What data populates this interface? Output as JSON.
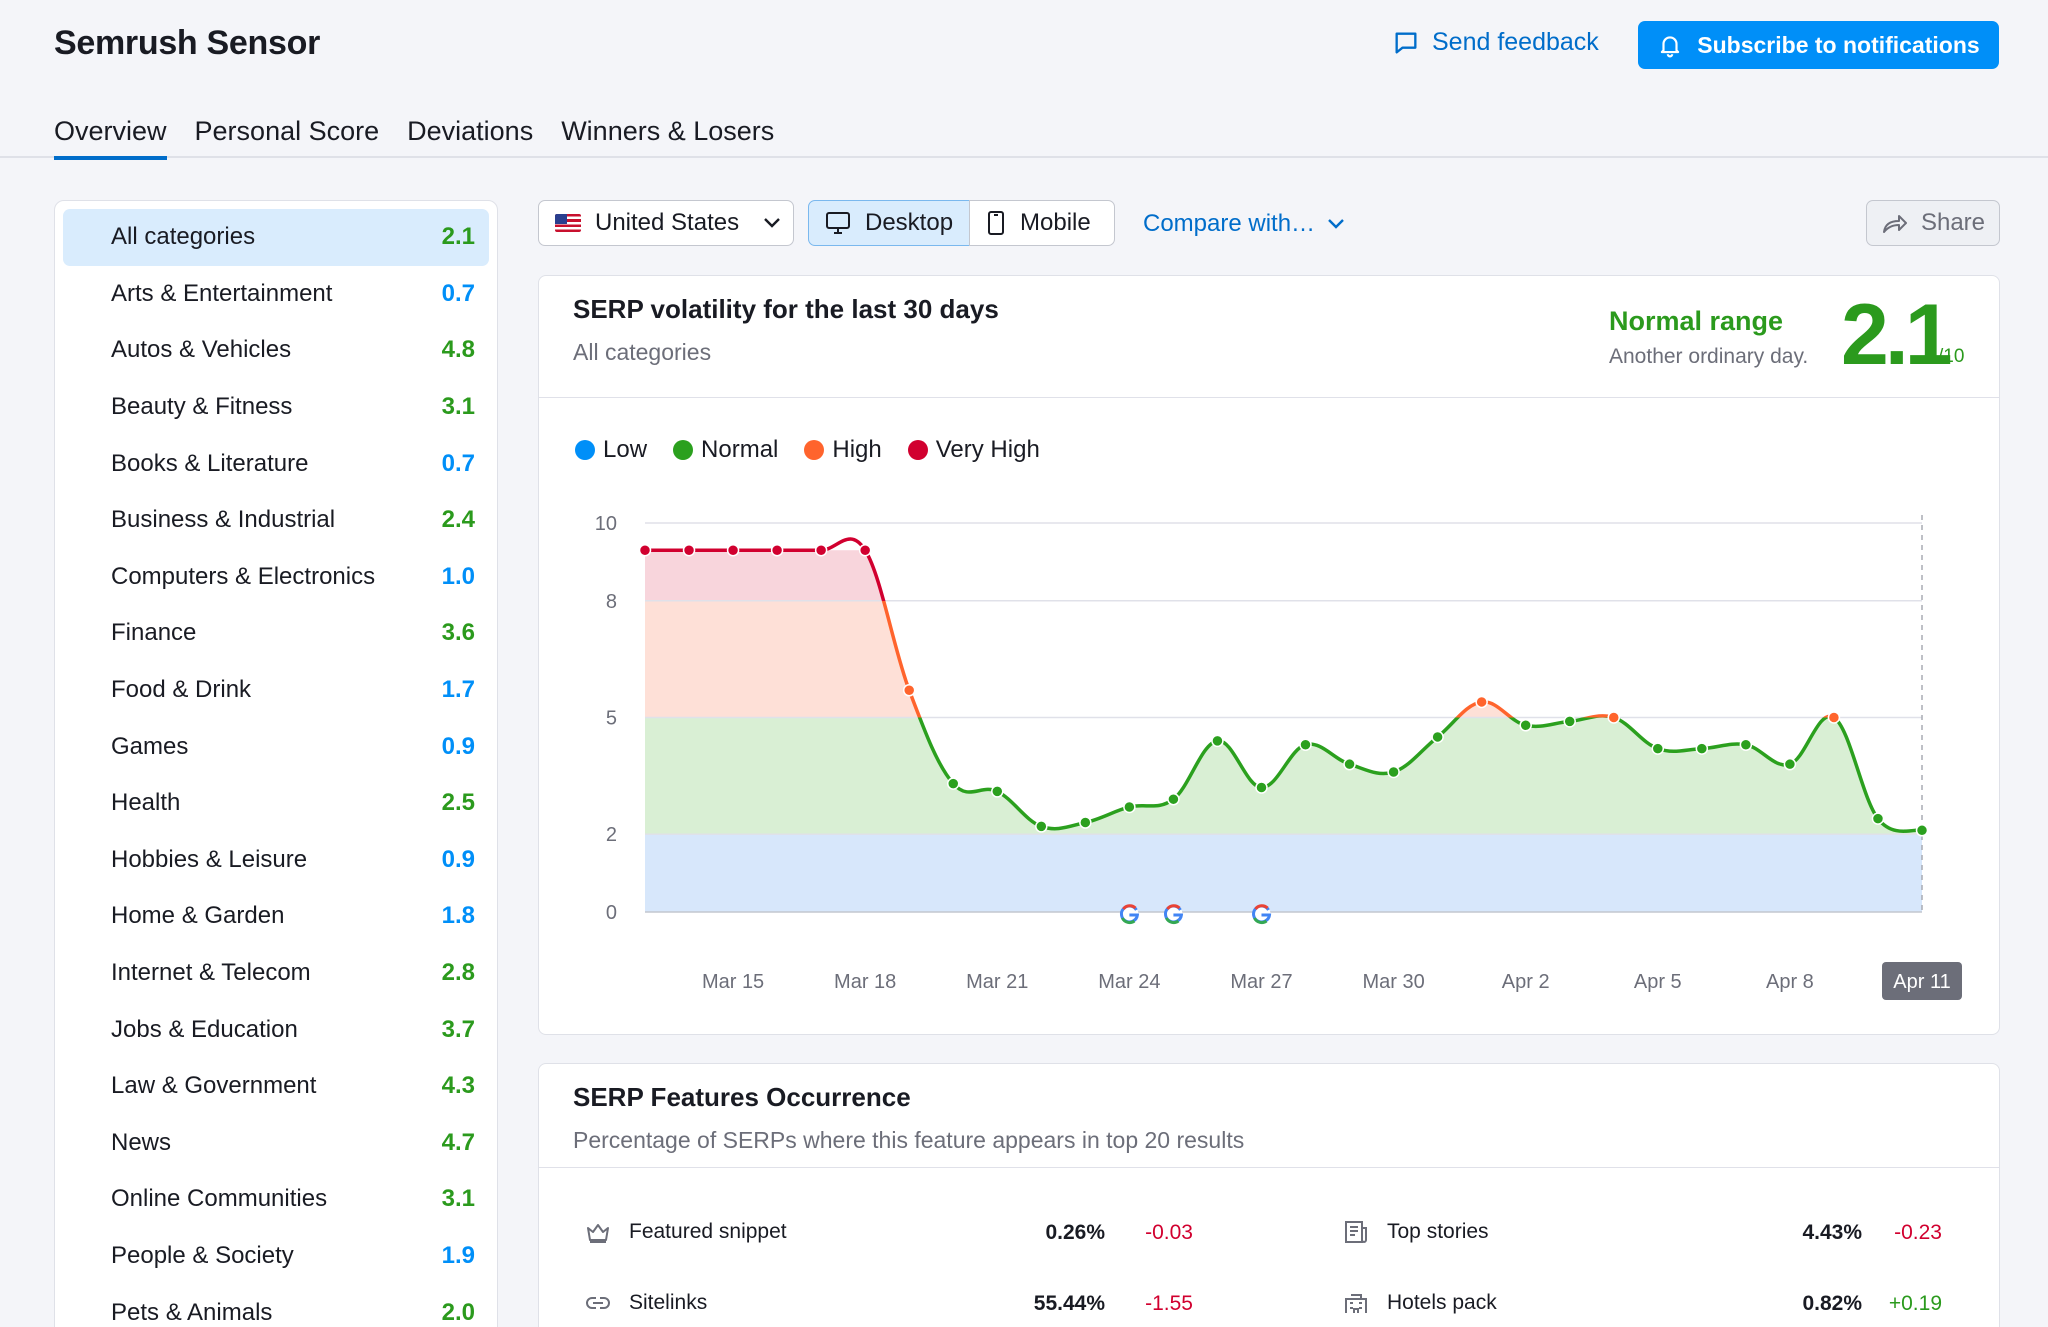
{
  "header": {
    "app_title": "Semrush Sensor",
    "feedback_label": "Send feedback",
    "subscribe_label": "Subscribe to notifications"
  },
  "tabs": [
    {
      "label": "Overview",
      "active": true
    },
    {
      "label": "Personal Score",
      "active": false
    },
    {
      "label": "Deviations",
      "active": false
    },
    {
      "label": "Winners & Losers",
      "active": false
    }
  ],
  "sidebar": {
    "categories": [
      {
        "label": "All categories",
        "value": "2.1",
        "level": "normal",
        "active": true
      },
      {
        "label": "Arts & Entertainment",
        "value": "0.7",
        "level": "low"
      },
      {
        "label": "Autos & Vehicles",
        "value": "4.8",
        "level": "normal"
      },
      {
        "label": "Beauty & Fitness",
        "value": "3.1",
        "level": "normal"
      },
      {
        "label": "Books & Literature",
        "value": "0.7",
        "level": "low"
      },
      {
        "label": "Business & Industrial",
        "value": "2.4",
        "level": "normal"
      },
      {
        "label": "Computers & Electronics",
        "value": "1.0",
        "level": "low"
      },
      {
        "label": "Finance",
        "value": "3.6",
        "level": "normal"
      },
      {
        "label": "Food & Drink",
        "value": "1.7",
        "level": "low"
      },
      {
        "label": "Games",
        "value": "0.9",
        "level": "low"
      },
      {
        "label": "Health",
        "value": "2.5",
        "level": "normal"
      },
      {
        "label": "Hobbies & Leisure",
        "value": "0.9",
        "level": "low"
      },
      {
        "label": "Home & Garden",
        "value": "1.8",
        "level": "low"
      },
      {
        "label": "Internet & Telecom",
        "value": "2.8",
        "level": "normal"
      },
      {
        "label": "Jobs & Education",
        "value": "3.7",
        "level": "normal"
      },
      {
        "label": "Law & Government",
        "value": "4.3",
        "level": "normal"
      },
      {
        "label": "News",
        "value": "4.7",
        "level": "normal"
      },
      {
        "label": "Online Communities",
        "value": "3.1",
        "level": "normal"
      },
      {
        "label": "People & Society",
        "value": "1.9",
        "level": "low"
      },
      {
        "label": "Pets & Animals",
        "value": "2.0",
        "level": "normal"
      }
    ]
  },
  "controls": {
    "country": "United States",
    "desktop_label": "Desktop",
    "mobile_label": "Mobile",
    "compare_label": "Compare with…",
    "share_label": "Share",
    "selected_device": "Desktop"
  },
  "volatility": {
    "title": "SERP volatility for the last 30 days",
    "subtitle": "All categories",
    "range_title": "Normal range",
    "range_sub": "Another ordinary day.",
    "score": "2.1",
    "score_unit": "/10",
    "legend": [
      {
        "label": "Low",
        "color": "#008ff8"
      },
      {
        "label": "Normal",
        "color": "#2ba01e"
      },
      {
        "label": "High",
        "color": "#ff642d"
      },
      {
        "label": "Very High",
        "color": "#d1002f"
      }
    ]
  },
  "chart_data": {
    "type": "area",
    "ylim": [
      0,
      10
    ],
    "y_ticks": [
      "0",
      "2",
      "5",
      "8",
      "10"
    ],
    "bands": [
      {
        "name": "Low",
        "from": 0,
        "to": 2,
        "color": "#d7e7fb"
      },
      {
        "name": "Normal",
        "from": 2,
        "to": 5,
        "color": "#d9efd4"
      },
      {
        "name": "High",
        "from": 5,
        "to": 8,
        "color": "#fee0d7"
      },
      {
        "name": "Very High",
        "from": 8,
        "to": 9.3,
        "color": "#f8d5dc"
      }
    ],
    "x": [
      "Mar 13",
      "Mar 14",
      "Mar 15",
      "Mar 16",
      "Mar 17",
      "Mar 18",
      "Mar 19",
      "Mar 20",
      "Mar 21",
      "Mar 22",
      "Mar 23",
      "Mar 24",
      "Mar 25",
      "Mar 26",
      "Mar 27",
      "Mar 28",
      "Mar 29",
      "Mar 30",
      "Mar 31",
      "Apr 1",
      "Apr 2",
      "Apr 3",
      "Apr 4",
      "Apr 5",
      "Apr 6",
      "Apr 7",
      "Apr 8",
      "Apr 9",
      "Apr 10",
      "Apr 11"
    ],
    "x_tick_labels": [
      "Mar 15",
      "Mar 18",
      "Mar 21",
      "Mar 24",
      "Mar 27",
      "Mar 30",
      "Apr 2",
      "Apr 5",
      "Apr 8",
      "Apr 11"
    ],
    "values": [
      9.3,
      9.3,
      9.3,
      9.3,
      9.3,
      9.3,
      5.7,
      3.3,
      3.1,
      2.2,
      2.3,
      2.7,
      2.9,
      4.4,
      3.2,
      4.3,
      3.8,
      3.6,
      4.5,
      5.4,
      4.8,
      4.9,
      5.0,
      4.2,
      4.2,
      4.3,
      3.8,
      5.0,
      2.4,
      2.1
    ],
    "google_update_markers": [
      "Mar 24",
      "Mar 25",
      "Mar 27"
    ],
    "highlighted_x": "Apr 11"
  },
  "features": {
    "title": "SERP Features Occurrence",
    "subtitle": "Percentage of SERPs where this feature appears in top 20 results",
    "items": [
      {
        "label": "Featured snippet",
        "pct": "0.26%",
        "delta": "-0.03",
        "trend": "neg",
        "icon": "crown-icon"
      },
      {
        "label": "Top stories",
        "pct": "4.43%",
        "delta": "-0.23",
        "trend": "neg",
        "icon": "newspaper-icon"
      },
      {
        "label": "Sitelinks",
        "pct": "55.44%",
        "delta": "-1.55",
        "trend": "neg",
        "icon": "link-icon"
      },
      {
        "label": "Hotels pack",
        "pct": "0.82%",
        "delta": "+0.19",
        "trend": "pos",
        "icon": "hotel-icon"
      }
    ]
  }
}
